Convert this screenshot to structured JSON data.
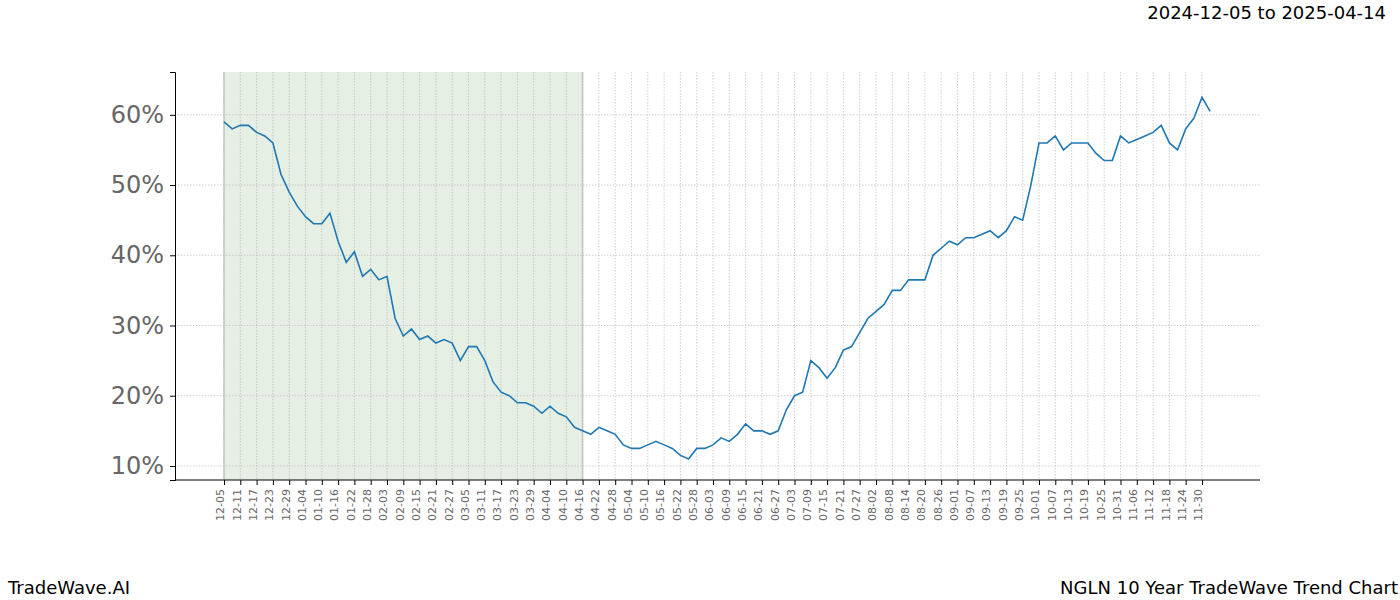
{
  "chart_data": {
    "type": "line",
    "title": "NGLN 10 Year TradeWave Trend Chart",
    "subtitle": "2024-12-05 to 2025-04-14",
    "source": "TradeWave.AI",
    "categories": [
      "12-05",
      null,
      "12-11",
      null,
      "12-17",
      null,
      "12-23",
      null,
      "12-29",
      null,
      "01-04",
      null,
      "01-10",
      null,
      "01-16",
      null,
      "01-22",
      null,
      "01-28",
      null,
      "02-03",
      null,
      "02-09",
      null,
      "02-15",
      null,
      "02-21",
      null,
      "02-27",
      null,
      "03-05",
      null,
      "03-11",
      null,
      "03-17",
      null,
      "03-23",
      null,
      "03-29",
      null,
      "04-04",
      null,
      "04-10",
      null,
      "04-16",
      null,
      "04-22",
      null,
      "04-28",
      null,
      "05-04",
      null,
      "05-10",
      null,
      "05-16",
      null,
      "05-22",
      null,
      "05-28",
      null,
      "06-03",
      null,
      "06-09",
      null,
      "06-15",
      null,
      "06-21",
      null,
      "06-27",
      null,
      "07-03",
      null,
      "07-09",
      null,
      "07-15",
      null,
      "07-21",
      null,
      "07-27",
      null,
      "08-02",
      null,
      "08-08",
      null,
      "08-14",
      null,
      "08-20",
      null,
      "08-26",
      null,
      "09-01",
      null,
      "09-07",
      null,
      "09-13",
      null,
      "09-19",
      null,
      "09-25",
      null,
      "10-01",
      null,
      "10-07",
      null,
      "10-13",
      null,
      "10-19",
      null,
      "10-25",
      null,
      "10-31",
      null,
      "11-06",
      null,
      "11-12",
      null,
      "11-18",
      null,
      "11-24",
      null,
      "11-30",
      null
    ],
    "values": [
      59,
      58,
      58.5,
      58.5,
      57.5,
      57,
      56,
      51.5,
      49,
      47,
      45.5,
      44.5,
      44.5,
      46,
      42,
      39,
      40.5,
      37,
      38,
      36.5,
      37,
      31,
      28.5,
      29.5,
      28,
      28.5,
      27.5,
      28,
      27.5,
      25,
      27,
      27,
      25,
      22,
      20.5,
      20,
      19,
      19,
      18.5,
      17.5,
      18.5,
      17.5,
      17,
      15.5,
      15,
      14.5,
      15.5,
      15,
      14.5,
      13,
      12.5,
      12.5,
      13,
      13.5,
      13,
      12.5,
      11.5,
      11,
      12.5,
      12.5,
      13,
      14,
      13.5,
      14.5,
      16,
      15,
      15,
      14.5,
      15,
      18,
      20,
      20.5,
      25,
      24,
      22.5,
      24,
      26.5,
      27,
      29,
      31,
      32,
      33,
      35,
      35,
      36.5,
      36.5,
      36.5,
      40,
      41,
      42,
      41.5,
      42.5,
      42.5,
      43,
      43.5,
      42.5,
      43.5,
      45.5,
      45,
      50,
      56,
      56,
      57,
      55,
      56,
      56,
      56,
      54.5,
      53.5,
      53.5,
      57,
      56,
      56.5,
      57,
      57.5,
      58.5,
      56,
      55,
      58,
      59.5,
      62.5,
      60.5
    ],
    "color": "#1f77b4",
    "shaded_range": [
      "12-05",
      "04-16"
    ],
    "ylim": [
      8,
      66.1
    ],
    "yticks": [
      {
        "value": 10,
        "label": "10%"
      },
      {
        "value": 20,
        "label": "20%"
      },
      {
        "value": 30,
        "label": "30%"
      },
      {
        "value": 40,
        "label": "40%"
      },
      {
        "value": 50,
        "label": "50%"
      },
      {
        "value": 60,
        "label": "60%"
      }
    ],
    "grid": true
  }
}
